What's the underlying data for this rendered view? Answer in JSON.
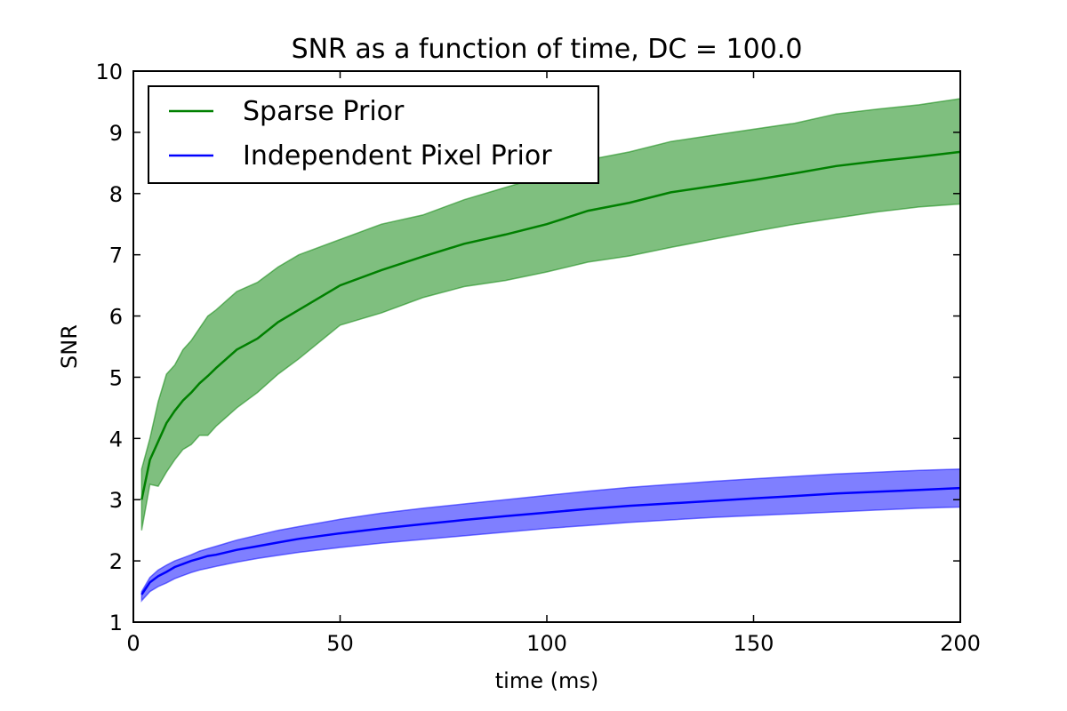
{
  "chart_data": {
    "type": "line",
    "title": "SNR as a function of time, DC = 100.0",
    "xlabel": "time (ms)",
    "ylabel": "SNR",
    "xlim": [
      0,
      200
    ],
    "ylim": [
      1,
      10
    ],
    "xticks": [
      0,
      50,
      100,
      150,
      200
    ],
    "yticks": [
      1,
      2,
      3,
      4,
      5,
      6,
      7,
      8,
      9,
      10
    ],
    "grid": false,
    "legend_position": "top-left",
    "series": [
      {
        "name": "Sparse Prior",
        "color": "#008000",
        "fill_color": "#008000",
        "x": [
          2,
          4,
          6,
          8,
          10,
          12,
          14,
          16,
          18,
          20,
          25,
          30,
          35,
          40,
          50,
          60,
          70,
          80,
          90,
          100,
          110,
          120,
          130,
          140,
          150,
          160,
          170,
          180,
          190,
          200
        ],
        "mean": [
          3.0,
          3.65,
          3.95,
          4.25,
          4.45,
          4.62,
          4.75,
          4.9,
          5.02,
          5.15,
          5.45,
          5.63,
          5.9,
          6.1,
          6.5,
          6.75,
          6.97,
          7.18,
          7.33,
          7.5,
          7.72,
          7.85,
          8.02,
          8.12,
          8.22,
          8.33,
          8.45,
          8.53,
          8.6,
          8.68
        ],
        "upper": [
          3.5,
          4.0,
          4.6,
          5.05,
          5.2,
          5.45,
          5.6,
          5.8,
          6.0,
          6.1,
          6.4,
          6.55,
          6.8,
          7.0,
          7.25,
          7.5,
          7.65,
          7.9,
          8.1,
          8.3,
          8.55,
          8.68,
          8.85,
          8.95,
          9.05,
          9.15,
          9.3,
          9.38,
          9.45,
          9.55
        ],
        "lower": [
          2.5,
          3.25,
          3.22,
          3.45,
          3.65,
          3.82,
          3.9,
          4.05,
          4.05,
          4.2,
          4.5,
          4.75,
          5.05,
          5.3,
          5.85,
          6.05,
          6.3,
          6.48,
          6.58,
          6.72,
          6.88,
          6.98,
          7.12,
          7.25,
          7.38,
          7.5,
          7.6,
          7.7,
          7.78,
          7.83
        ]
      },
      {
        "name": "Independent Pixel Prior",
        "color": "#0000ff",
        "fill_color": "#0000ff",
        "x": [
          2,
          4,
          6,
          8,
          10,
          12,
          14,
          16,
          18,
          20,
          25,
          30,
          35,
          40,
          50,
          60,
          70,
          80,
          90,
          100,
          110,
          120,
          130,
          140,
          150,
          160,
          170,
          180,
          190,
          200
        ],
        "mean": [
          1.45,
          1.65,
          1.75,
          1.82,
          1.9,
          1.95,
          2.0,
          2.04,
          2.08,
          2.1,
          2.18,
          2.24,
          2.3,
          2.36,
          2.45,
          2.53,
          2.6,
          2.67,
          2.73,
          2.79,
          2.85,
          2.9,
          2.94,
          2.98,
          3.02,
          3.06,
          3.1,
          3.13,
          3.16,
          3.19
        ],
        "upper": [
          1.5,
          1.73,
          1.85,
          1.93,
          2.0,
          2.05,
          2.1,
          2.16,
          2.2,
          2.24,
          2.34,
          2.42,
          2.5,
          2.56,
          2.68,
          2.78,
          2.86,
          2.93,
          3.0,
          3.07,
          3.14,
          3.2,
          3.25,
          3.3,
          3.34,
          3.38,
          3.42,
          3.45,
          3.48,
          3.5
        ],
        "lower": [
          1.35,
          1.5,
          1.58,
          1.64,
          1.71,
          1.76,
          1.81,
          1.85,
          1.88,
          1.91,
          1.98,
          2.04,
          2.09,
          2.14,
          2.22,
          2.29,
          2.35,
          2.41,
          2.47,
          2.53,
          2.58,
          2.63,
          2.67,
          2.71,
          2.74,
          2.77,
          2.8,
          2.83,
          2.86,
          2.88
        ]
      }
    ]
  }
}
